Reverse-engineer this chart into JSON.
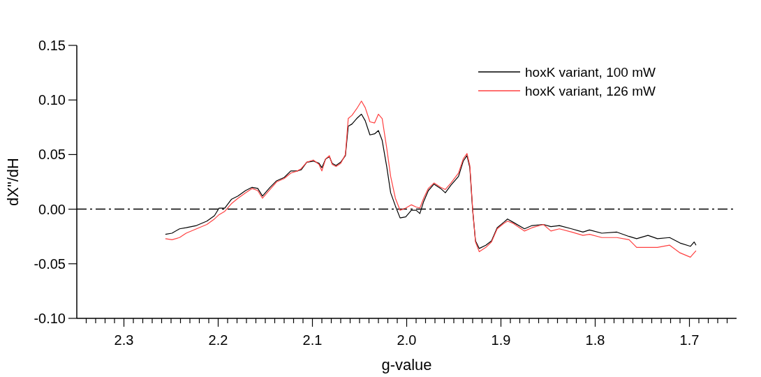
{
  "chart_data": {
    "type": "line",
    "xlabel": "g-value",
    "ylabel": "dX\"/dH",
    "xlim": [
      2.35,
      1.65
    ],
    "ylim": [
      -0.1,
      0.15
    ],
    "xticks": [
      {
        "value": 2.34,
        "label": null
      },
      {
        "value": 2.33,
        "label": null
      },
      {
        "value": 2.32,
        "label": null
      },
      {
        "value": 2.31,
        "label": null
      },
      {
        "value": 2.3,
        "label": "2.3"
      },
      {
        "value": 2.29,
        "label": null
      },
      {
        "value": 2.28,
        "label": null
      },
      {
        "value": 2.27,
        "label": null
      },
      {
        "value": 2.26,
        "label": null
      },
      {
        "value": 2.25,
        "label": null
      },
      {
        "value": 2.24,
        "label": null
      },
      {
        "value": 2.23,
        "label": null
      },
      {
        "value": 2.22,
        "label": null
      },
      {
        "value": 2.21,
        "label": null
      },
      {
        "value": 2.2,
        "label": "2.2"
      },
      {
        "value": 2.19,
        "label": null
      },
      {
        "value": 2.18,
        "label": null
      },
      {
        "value": 2.17,
        "label": null
      },
      {
        "value": 2.16,
        "label": null
      },
      {
        "value": 2.15,
        "label": null
      },
      {
        "value": 2.14,
        "label": null
      },
      {
        "value": 2.13,
        "label": null
      },
      {
        "value": 2.12,
        "label": null
      },
      {
        "value": 2.11,
        "label": null
      },
      {
        "value": 2.1,
        "label": "2.1"
      },
      {
        "value": 2.09,
        "label": null
      },
      {
        "value": 2.08,
        "label": null
      },
      {
        "value": 2.07,
        "label": null
      },
      {
        "value": 2.06,
        "label": null
      },
      {
        "value": 2.05,
        "label": null
      },
      {
        "value": 2.04,
        "label": null
      },
      {
        "value": 2.03,
        "label": null
      },
      {
        "value": 2.02,
        "label": null
      },
      {
        "value": 2.01,
        "label": null
      },
      {
        "value": 2.0,
        "label": "2.0"
      },
      {
        "value": 1.99,
        "label": null
      },
      {
        "value": 1.98,
        "label": null
      },
      {
        "value": 1.97,
        "label": null
      },
      {
        "value": 1.96,
        "label": null
      },
      {
        "value": 1.95,
        "label": null
      },
      {
        "value": 1.94,
        "label": null
      },
      {
        "value": 1.93,
        "label": null
      },
      {
        "value": 1.92,
        "label": null
      },
      {
        "value": 1.91,
        "label": null
      },
      {
        "value": 1.9,
        "label": "1.9"
      },
      {
        "value": 1.89,
        "label": null
      },
      {
        "value": 1.88,
        "label": null
      },
      {
        "value": 1.87,
        "label": null
      },
      {
        "value": 1.86,
        "label": null
      },
      {
        "value": 1.85,
        "label": null
      },
      {
        "value": 1.84,
        "label": null
      },
      {
        "value": 1.83,
        "label": null
      },
      {
        "value": 1.82,
        "label": null
      },
      {
        "value": 1.81,
        "label": null
      },
      {
        "value": 1.8,
        "label": "1.8"
      },
      {
        "value": 1.79,
        "label": null
      },
      {
        "value": 1.78,
        "label": null
      },
      {
        "value": 1.77,
        "label": null
      },
      {
        "value": 1.76,
        "label": null
      },
      {
        "value": 1.75,
        "label": null
      },
      {
        "value": 1.74,
        "label": null
      },
      {
        "value": 1.73,
        "label": null
      },
      {
        "value": 1.72,
        "label": null
      },
      {
        "value": 1.71,
        "label": null
      },
      {
        "value": 1.7,
        "label": "1.7"
      },
      {
        "value": 1.69,
        "label": null
      },
      {
        "value": 1.68,
        "label": null
      },
      {
        "value": 1.67,
        "label": null
      },
      {
        "value": 1.66,
        "label": null
      }
    ],
    "yticks": [
      {
        "value": 0.15,
        "label": "0.15"
      },
      {
        "value": 0.1,
        "label": "0.10"
      },
      {
        "value": 0.05,
        "label": "0.05"
      },
      {
        "value": 0,
        "label": "0.00"
      },
      {
        "value": -0.05,
        "label": "-0.05"
      },
      {
        "value": -0.1,
        "label": "-0.10"
      }
    ],
    "legend": "top right",
    "grid": false,
    "ref_lines": [
      {
        "axis": "y",
        "value": 0,
        "color": "#000000",
        "line_style": "dashed"
      }
    ],
    "series": [
      {
        "name": "hoxK variant, 100 mW",
        "color": "#000000",
        "x": [
          2.256,
          2.249,
          2.241,
          2.234,
          2.223,
          2.212,
          2.204,
          2.199,
          2.193,
          2.186,
          2.179,
          2.171,
          2.164,
          2.158,
          2.153,
          2.145,
          2.138,
          2.13,
          2.123,
          2.116,
          2.112,
          2.106,
          2.099,
          2.093,
          2.09,
          2.086,
          2.082,
          2.079,
          2.075,
          2.07,
          2.065,
          2.062,
          2.058,
          2.053,
          2.048,
          2.044,
          2.039,
          2.034,
          2.03,
          2.026,
          2.021,
          2.017,
          2.012,
          2.007,
          2.001,
          1.995,
          1.99,
          1.986,
          1.982,
          1.977,
          1.971,
          1.964,
          1.959,
          1.953,
          1.945,
          1.94,
          1.936,
          1.933,
          1.93,
          1.927,
          1.923,
          1.916,
          1.91,
          1.904,
          1.897,
          1.893,
          1.887,
          1.875,
          1.867,
          1.855,
          1.847,
          1.838,
          1.825,
          1.813,
          1.806,
          1.793,
          1.777,
          1.764,
          1.756,
          1.744,
          1.734,
          1.721,
          1.71,
          1.699,
          1.695,
          1.693
        ],
        "values": [
          -0.023,
          -0.022,
          -0.018,
          -0.017,
          -0.015,
          -0.011,
          -0.006,
          0.001,
          0.001,
          0.009,
          0.012,
          0.017,
          0.02,
          0.019,
          0.012,
          0.02,
          0.026,
          0.029,
          0.035,
          0.035,
          0.036,
          0.043,
          0.044,
          0.042,
          0.038,
          0.046,
          0.048,
          0.042,
          0.04,
          0.043,
          0.049,
          0.076,
          0.078,
          0.083,
          0.087,
          0.081,
          0.068,
          0.069,
          0.072,
          0.063,
          0.038,
          0.015,
          0.003,
          -0.008,
          -0.007,
          -0.001,
          -0.001,
          -0.004,
          0.007,
          0.017,
          0.023,
          0.019,
          0.015,
          0.022,
          0.03,
          0.044,
          0.049,
          0.038,
          -0.001,
          -0.029,
          -0.036,
          -0.033,
          -0.029,
          -0.017,
          -0.012,
          -0.009,
          -0.012,
          -0.018,
          -0.015,
          -0.014,
          -0.016,
          -0.015,
          -0.018,
          -0.021,
          -0.019,
          -0.022,
          -0.021,
          -0.025,
          -0.027,
          -0.024,
          -0.027,
          -0.026,
          -0.031,
          -0.034,
          -0.03,
          -0.033
        ]
      },
      {
        "name": "hoxK variant, 126 mW",
        "color": "#ff4040",
        "x": [
          2.256,
          2.249,
          2.241,
          2.234,
          2.223,
          2.212,
          2.204,
          2.199,
          2.193,
          2.186,
          2.179,
          2.171,
          2.164,
          2.158,
          2.153,
          2.145,
          2.138,
          2.13,
          2.123,
          2.116,
          2.112,
          2.106,
          2.099,
          2.093,
          2.09,
          2.086,
          2.082,
          2.079,
          2.075,
          2.07,
          2.065,
          2.062,
          2.058,
          2.053,
          2.048,
          2.044,
          2.039,
          2.034,
          2.03,
          2.026,
          2.021,
          2.017,
          2.012,
          2.007,
          2.001,
          1.995,
          1.99,
          1.986,
          1.982,
          1.977,
          1.971,
          1.964,
          1.959,
          1.953,
          1.945,
          1.94,
          1.936,
          1.933,
          1.93,
          1.927,
          1.923,
          1.916,
          1.91,
          1.904,
          1.897,
          1.893,
          1.887,
          1.875,
          1.867,
          1.855,
          1.847,
          1.838,
          1.825,
          1.813,
          1.806,
          1.793,
          1.777,
          1.764,
          1.756,
          1.744,
          1.734,
          1.721,
          1.71,
          1.699,
          1.695,
          1.693
        ],
        "values": [
          -0.027,
          -0.028,
          -0.026,
          -0.022,
          -0.018,
          -0.014,
          -0.009,
          -0.005,
          -0.002,
          0.005,
          0.01,
          0.015,
          0.019,
          0.017,
          0.01,
          0.018,
          0.025,
          0.028,
          0.033,
          0.035,
          0.037,
          0.043,
          0.045,
          0.041,
          0.035,
          0.046,
          0.049,
          0.041,
          0.039,
          0.042,
          0.05,
          0.083,
          0.086,
          0.092,
          0.099,
          0.093,
          0.08,
          0.079,
          0.087,
          0.083,
          0.055,
          0.03,
          0.01,
          -0.001,
          0.001,
          0.004,
          0.002,
          0.001,
          0.01,
          0.019,
          0.024,
          0.02,
          0.018,
          0.024,
          0.033,
          0.046,
          0.051,
          0.04,
          0.0,
          -0.03,
          -0.039,
          -0.035,
          -0.03,
          -0.018,
          -0.013,
          -0.011,
          -0.013,
          -0.02,
          -0.017,
          -0.014,
          -0.02,
          -0.018,
          -0.021,
          -0.024,
          -0.023,
          -0.026,
          -0.026,
          -0.028,
          -0.035,
          -0.035,
          -0.035,
          -0.033,
          -0.04,
          -0.044,
          -0.04,
          -0.038
        ]
      }
    ]
  }
}
